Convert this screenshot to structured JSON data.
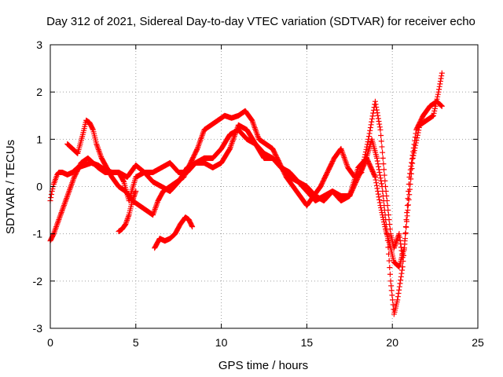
{
  "chart_data": {
    "type": "scatter",
    "title": "Day 312 of 2021, Sidereal Day-to-day VTEC variation (SDTVAR) for receiver echo",
    "xlabel": "GPS time / hours",
    "ylabel": "SDTVAR / TECUs",
    "xlim": [
      0,
      25
    ],
    "ylim": [
      -3,
      3
    ],
    "xticks": [
      "0",
      "5",
      "10",
      "15",
      "20",
      "25"
    ],
    "yticks": [
      "-3",
      "-2",
      "-1",
      "0",
      "1",
      "2",
      "3"
    ],
    "grid": true,
    "marker": "+",
    "color": "#ff0000",
    "series": [
      {
        "x": [
          0.0,
          0.1,
          0.2,
          0.3,
          0.4,
          0.5,
          0.7,
          1.0,
          1.3,
          1.6,
          2.0,
          2.4,
          2.8,
          3.2,
          3.6,
          4.0,
          4.5,
          5.0,
          5.5,
          6.0,
          6.5,
          7.0,
          7.5,
          8.0,
          8.5,
          9.0,
          9.5,
          10.0,
          10.5,
          11.0,
          11.5,
          12.0,
          12.5,
          13.0,
          13.5,
          14.0,
          14.5,
          15.0,
          15.5,
          16.0,
          16.5,
          17.0,
          17.5,
          18.0,
          18.5,
          19.0,
          19.3,
          19.6,
          19.9,
          20.1,
          20.4,
          20.7,
          21.0,
          21.4,
          21.8,
          22.2,
          22.6,
          22.9
        ],
        "y": [
          -0.3,
          -0.1,
          0.05,
          0.15,
          0.25,
          0.3,
          0.3,
          0.25,
          0.3,
          0.4,
          0.45,
          0.5,
          0.45,
          0.35,
          0.3,
          0.3,
          0.2,
          0.45,
          0.3,
          0.3,
          0.4,
          0.5,
          0.3,
          0.3,
          0.5,
          0.6,
          0.6,
          0.8,
          1.1,
          1.2,
          1.0,
          0.9,
          0.7,
          0.6,
          0.4,
          0.2,
          0.1,
          0.0,
          -0.2,
          -0.3,
          -0.1,
          -0.3,
          -0.2,
          0.4,
          0.6,
          0.2,
          -0.4,
          -0.9,
          -1.3,
          -1.6,
          -1.7,
          -1.3,
          0.2,
          1.2,
          1.5,
          1.7,
          1.8,
          1.7
        ]
      },
      {
        "x": [
          0.0,
          0.2,
          0.5,
          0.8,
          1.1,
          1.4,
          1.8,
          2.2,
          2.5,
          2.8,
          3.2,
          3.6,
          4.0,
          4.3,
          4.6,
          5.0,
          5.5,
          6.0,
          6.5,
          7.0,
          7.5,
          8.0,
          8.5,
          9.0,
          9.5,
          10.0,
          10.5,
          11.0,
          11.5,
          12.0,
          12.5,
          13.0,
          13.5,
          14.0,
          14.5,
          15.0,
          15.5,
          16.0,
          16.5,
          17.0,
          17.5,
          18.0,
          18.4,
          18.8,
          19.1,
          19.4,
          19.7,
          19.9,
          20.1,
          20.3,
          20.6,
          20.9,
          21.2,
          21.6,
          22.0,
          22.4,
          22.7,
          22.9
        ],
        "y": [
          -1.15,
          -1.0,
          -0.7,
          -0.4,
          -0.1,
          0.2,
          0.5,
          0.6,
          0.5,
          0.4,
          0.3,
          0.3,
          0.3,
          0.1,
          -0.3,
          0.2,
          0.3,
          0.1,
          0.0,
          -0.1,
          0.1,
          0.4,
          0.5,
          0.5,
          0.4,
          0.5,
          0.8,
          1.3,
          1.2,
          0.9,
          0.6,
          0.6,
          0.4,
          0.3,
          0.1,
          -0.1,
          -0.3,
          -0.2,
          -0.1,
          -0.2,
          -0.2,
          0.2,
          0.5,
          1.0,
          0.6,
          0.0,
          -1.0,
          -2.0,
          -2.7,
          -2.4,
          -1.7,
          -0.5,
          0.6,
          1.3,
          1.4,
          1.5,
          2.0,
          2.4
        ]
      },
      {
        "x": [
          1.0,
          1.3,
          1.6,
          1.9,
          2.1,
          2.3,
          2.5,
          2.7,
          3.0,
          3.3,
          3.6,
          4.0,
          4.4,
          4.8,
          5.2,
          5.6,
          6.0,
          6.3,
          6.6,
          7.0,
          7.4,
          7.8,
          8.2,
          8.6,
          9.0,
          9.4,
          9.8,
          10.2,
          10.6,
          11.0,
          11.4,
          11.8,
          12.2,
          12.6,
          13.0,
          13.4,
          13.8,
          14.2,
          14.6,
          15.0,
          15.4,
          15.8,
          16.2,
          16.6,
          17.0,
          17.4,
          17.8,
          18.2,
          18.6,
          19.0,
          19.3,
          19.6,
          19.9,
          20.1,
          20.4,
          20.6
        ],
        "y": [
          0.9,
          0.8,
          0.7,
          1.1,
          1.4,
          1.35,
          1.2,
          0.9,
          0.6,
          0.4,
          0.2,
          0.0,
          -0.1,
          -0.3,
          -0.4,
          -0.5,
          -0.6,
          -0.3,
          -0.1,
          0.0,
          0.1,
          0.2,
          0.5,
          0.8,
          1.2,
          1.3,
          1.4,
          1.5,
          1.45,
          1.5,
          1.6,
          1.4,
          1.0,
          0.9,
          0.8,
          0.5,
          0.2,
          0.0,
          -0.2,
          -0.4,
          -0.2,
          0.0,
          0.3,
          0.6,
          0.8,
          0.4,
          0.2,
          0.3,
          1.0,
          1.8,
          1.2,
          0.0,
          -1.0,
          -1.3,
          -1.0,
          -1.5
        ]
      },
      {
        "x": [
          4.0,
          4.2,
          4.4,
          4.6,
          4.8,
          5.0
        ],
        "y": [
          -0.95,
          -0.9,
          -0.8,
          -0.6,
          -0.3,
          -0.1
        ]
      },
      {
        "x": [
          6.1,
          6.4,
          6.7,
          7.0,
          7.3,
          7.6,
          7.9,
          8.1,
          8.3
        ],
        "y": [
          -1.3,
          -1.1,
          -1.15,
          -1.1,
          -1.0,
          -0.8,
          -0.65,
          -0.7,
          -0.85
        ]
      }
    ]
  }
}
